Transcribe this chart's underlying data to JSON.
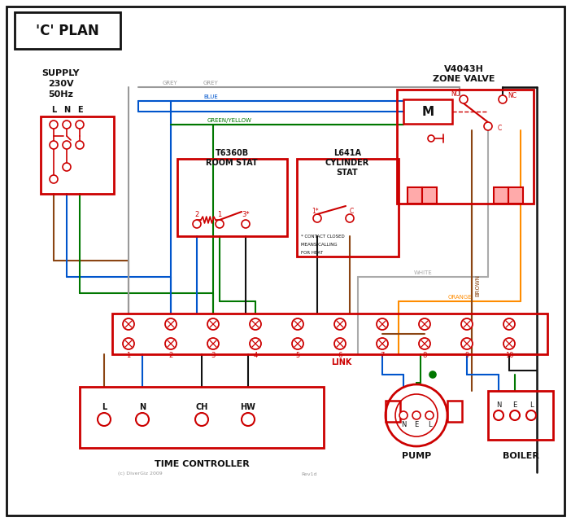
{
  "title": "'C' PLAN",
  "bg_color": "#ffffff",
  "red": "#cc0000",
  "blue": "#0055cc",
  "green": "#007700",
  "grey": "#999999",
  "brown": "#8B4513",
  "orange": "#FF8C00",
  "black": "#111111",
  "white_wire": "#aaaaaa",
  "zone_valve_text1": "V4043H",
  "zone_valve_text2": "ZONE VALVE",
  "room_stat_text1": "T6360B",
  "room_stat_text2": "ROOM STAT",
  "cyl_stat_text1": "L641A",
  "cyl_stat_text2": "CYLINDER",
  "cyl_stat_text3": "STAT",
  "time_ctrl_text": "TIME CONTROLLER",
  "pump_text": "PUMP",
  "boiler_text": "BOILER",
  "link_text": "LINK",
  "supply_text1": "SUPPLY",
  "supply_text2": "230V",
  "supply_text3": "50Hz"
}
